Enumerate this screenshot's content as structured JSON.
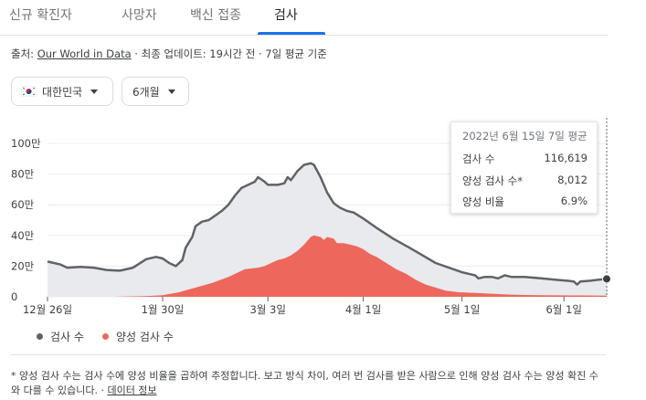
{
  "tabs": [
    "신규 확진자",
    "사망자",
    "백신 접종",
    "검사"
  ],
  "source": {
    "prefix": "출처:",
    "link": "Our World in Data",
    "rest": "· 최종 업데이트: 19시간 전 · 7일 평균 기준"
  },
  "filters": {
    "country": "대한민국",
    "period": "6개월"
  },
  "tooltip": {
    "title": "2022년 6월 15일 7일 평균",
    "rows": [
      {
        "label": "검사 수",
        "value": "116,619"
      },
      {
        "label": "양성 검사 수*",
        "value": "8,012"
      },
      {
        "label": "양성 비율",
        "value": "6.9%"
      }
    ]
  },
  "legend": {
    "tests": "검사 수",
    "positive": "양성 검사 수"
  },
  "footnote": {
    "text": "* 양성 검사 수는 검사 수에 양성 비율을 곱하여 추정합니다. 보고 방식 차이, 여러 번 검사를 받은 사람으로 인해 양성 검사 수는 양성 확진 수와 다를 수 있습니다.",
    "link": "데이터 정보"
  },
  "colors": {
    "tests": "#5f6368",
    "tests_fill": "#e8eaed",
    "positive": "#ee675c"
  },
  "chart_data": {
    "type": "area",
    "x_range": [
      0,
      170
    ],
    "x_ticks": [
      {
        "x": 0,
        "label": "12월 26일"
      },
      {
        "x": 35,
        "label": "1월 30일"
      },
      {
        "x": 67,
        "label": "3월 3일"
      },
      {
        "x": 96,
        "label": "4월 1일"
      },
      {
        "x": 126,
        "label": "5월 1일"
      },
      {
        "x": 157,
        "label": "6월 1일"
      }
    ],
    "y_range": [
      0,
      100
    ],
    "y_ticks": [
      {
        "value": 0,
        "label": "0"
      },
      {
        "value": 20,
        "label": "20만"
      },
      {
        "value": 40,
        "label": "40만"
      },
      {
        "value": 60,
        "label": "60만"
      },
      {
        "value": 80,
        "label": "80만"
      },
      {
        "value": 100,
        "label": "100만"
      }
    ],
    "series": [
      {
        "name": "검사 수",
        "points": [
          [
            0,
            23
          ],
          [
            4,
            21
          ],
          [
            6,
            19
          ],
          [
            10,
            19.5
          ],
          [
            14,
            19
          ],
          [
            18,
            17.5
          ],
          [
            22,
            17
          ],
          [
            26,
            19
          ],
          [
            30,
            24.5
          ],
          [
            33,
            26
          ],
          [
            35,
            25
          ],
          [
            37,
            22
          ],
          [
            39,
            20
          ],
          [
            41,
            24
          ],
          [
            42,
            32
          ],
          [
            44,
            39
          ],
          [
            45,
            46
          ],
          [
            47,
            49
          ],
          [
            49,
            50
          ],
          [
            51,
            53
          ],
          [
            53,
            56
          ],
          [
            55,
            60
          ],
          [
            57,
            66
          ],
          [
            59,
            71
          ],
          [
            61,
            73
          ],
          [
            63,
            75
          ],
          [
            64,
            78
          ],
          [
            66,
            75
          ],
          [
            67,
            73
          ],
          [
            70,
            73
          ],
          [
            72,
            74
          ],
          [
            73,
            78
          ],
          [
            74,
            76
          ],
          [
            76,
            82
          ],
          [
            78,
            86
          ],
          [
            80,
            87
          ],
          [
            81,
            86
          ],
          [
            83,
            78
          ],
          [
            85,
            68
          ],
          [
            87,
            61
          ],
          [
            89,
            58
          ],
          [
            91,
            56
          ],
          [
            93,
            55
          ],
          [
            96,
            51
          ],
          [
            100,
            45
          ],
          [
            105,
            38
          ],
          [
            110,
            32
          ],
          [
            114,
            27
          ],
          [
            118,
            22
          ],
          [
            122,
            19
          ],
          [
            126,
            16
          ],
          [
            128,
            15
          ],
          [
            130,
            14
          ],
          [
            131,
            12
          ],
          [
            133,
            13
          ],
          [
            135,
            13
          ],
          [
            137,
            12
          ],
          [
            139,
            14
          ],
          [
            141,
            13
          ],
          [
            145,
            13
          ],
          [
            150,
            12
          ],
          [
            155,
            11
          ],
          [
            158,
            10.5
          ],
          [
            160,
            10
          ],
          [
            161,
            8
          ],
          [
            162,
            10
          ],
          [
            165,
            10.5
          ],
          [
            167,
            11
          ],
          [
            170,
            11.66
          ]
        ]
      },
      {
        "name": "양성 검사 수",
        "points": [
          [
            0,
            0
          ],
          [
            20,
            0
          ],
          [
            30,
            0.5
          ],
          [
            35,
            1
          ],
          [
            40,
            3
          ],
          [
            45,
            6
          ],
          [
            50,
            9
          ],
          [
            55,
            13
          ],
          [
            60,
            18
          ],
          [
            64,
            19
          ],
          [
            66,
            20
          ],
          [
            68,
            22
          ],
          [
            70,
            24
          ],
          [
            72,
            25
          ],
          [
            74,
            27
          ],
          [
            76,
            30
          ],
          [
            78,
            34
          ],
          [
            80,
            39
          ],
          [
            81,
            40
          ],
          [
            83,
            39
          ],
          [
            84,
            37
          ],
          [
            85,
            39
          ],
          [
            87,
            38
          ],
          [
            88,
            35
          ],
          [
            90,
            35
          ],
          [
            92,
            34
          ],
          [
            94,
            33
          ],
          [
            96,
            31
          ],
          [
            98,
            28
          ],
          [
            100,
            26
          ],
          [
            103,
            22
          ],
          [
            106,
            18
          ],
          [
            109,
            15
          ],
          [
            112,
            11
          ],
          [
            115,
            8
          ],
          [
            118,
            6
          ],
          [
            121,
            4
          ],
          [
            125,
            3
          ],
          [
            130,
            2.5
          ],
          [
            135,
            2
          ],
          [
            140,
            1.5
          ],
          [
            145,
            1.2
          ],
          [
            150,
            1
          ],
          [
            160,
            0.9
          ],
          [
            170,
            0.8
          ]
        ]
      }
    ],
    "marker": {
      "x": 170,
      "series": "검사 수"
    }
  }
}
